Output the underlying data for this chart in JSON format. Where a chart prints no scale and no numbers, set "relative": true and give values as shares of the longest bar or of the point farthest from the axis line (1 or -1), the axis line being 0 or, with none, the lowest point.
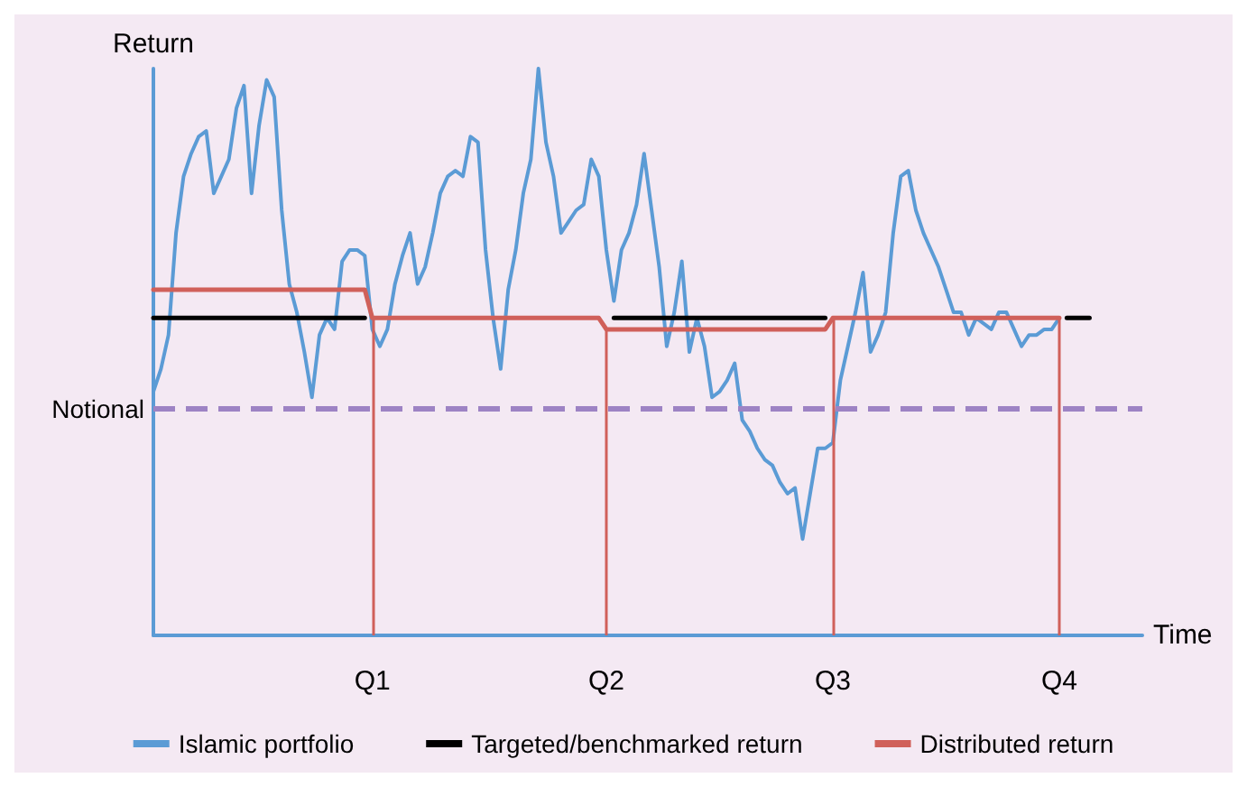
{
  "chart_data": {
    "type": "line",
    "relative": true,
    "xlabel": "Time",
    "ylabel": "Return",
    "categories": [
      null,
      null,
      null,
      null,
      null,
      null,
      null,
      null,
      null,
      null,
      null,
      null,
      null,
      null,
      null,
      null,
      null,
      null,
      null,
      null,
      null,
      null,
      null,
      null,
      null,
      null,
      null,
      null,
      null,
      "Q1",
      null,
      null,
      null,
      null,
      null,
      null,
      null,
      null,
      null,
      null,
      null,
      null,
      null,
      null,
      null,
      null,
      null,
      null,
      null,
      null,
      null,
      null,
      null,
      null,
      null,
      null,
      null,
      null,
      null,
      null,
      "Q2",
      null,
      null,
      null,
      null,
      null,
      null,
      null,
      null,
      null,
      null,
      null,
      null,
      null,
      null,
      null,
      null,
      null,
      null,
      null,
      null,
      null,
      null,
      null,
      null,
      null,
      null,
      null,
      null,
      null,
      "Q3",
      null,
      null,
      null,
      null,
      null,
      null,
      null,
      null,
      null,
      null,
      null,
      null,
      null,
      null,
      null,
      null,
      null,
      null,
      null,
      null,
      null,
      null,
      null,
      null,
      null,
      null,
      null,
      null,
      null,
      "Q4",
      null,
      null,
      null,
      null,
      null,
      null,
      null,
      null,
      null,
      null,
      null
    ],
    "series": [
      {
        "name": "Islamic portfolio",
        "color": "#5b9bd5",
        "values": [
          0.43,
          0.47,
          0.53,
          0.71,
          0.81,
          0.85,
          0.88,
          0.89,
          0.78,
          0.81,
          0.84,
          0.93,
          0.97,
          0.78,
          0.9,
          0.98,
          0.95,
          0.75,
          0.62,
          0.57,
          0.5,
          0.42,
          0.53,
          0.56,
          0.54,
          0.66,
          0.68,
          0.68,
          0.67,
          0.54,
          0.51,
          0.54,
          0.62,
          0.67,
          0.71,
          0.62,
          0.65,
          0.71,
          0.78,
          0.81,
          0.82,
          0.81,
          0.88,
          0.87,
          0.68,
          0.56,
          0.47,
          0.61,
          0.68,
          0.78,
          0.84,
          1,
          0.87,
          0.81,
          0.71,
          0.73,
          0.75,
          0.76,
          0.84,
          0.81,
          0.68,
          0.59,
          0.68,
          0.71,
          0.76,
          0.85,
          0.75,
          0.65,
          0.51,
          0.57,
          0.66,
          0.5,
          0.56,
          0.51,
          0.42,
          0.43,
          0.45,
          0.48,
          0.38,
          0.36,
          0.33,
          0.31,
          0.3,
          0.27,
          0.25,
          0.26,
          0.17,
          0.25,
          0.33,
          0.33,
          0.34,
          0.45,
          0.51,
          0.57,
          0.64,
          0.5,
          0.53,
          0.57,
          0.71,
          0.81,
          0.82,
          0.75,
          0.71,
          0.68,
          0.65,
          0.61,
          0.57,
          0.57,
          0.53,
          0.56,
          0.55,
          0.54,
          0.57,
          0.57,
          0.54,
          0.51,
          0.53,
          0.53,
          0.54,
          0.54,
          0.56,
          null,
          null,
          null,
          null,
          null,
          null,
          null,
          null,
          null,
          null,
          null
        ]
      },
      {
        "name": "Targeted/benchmarked return",
        "color": "#000000",
        "values": [
          0.56,
          0.56,
          0.56,
          0.56,
          0.56,
          0.56,
          0.56,
          0.56,
          0.56,
          0.56,
          0.56,
          0.56,
          0.56,
          0.56,
          0.56,
          0.56,
          0.56,
          0.56,
          0.56,
          0.56,
          0.56,
          0.56,
          0.56,
          0.56,
          0.56,
          0.56,
          0.56,
          0.56,
          0.56,
          null,
          null,
          null,
          null,
          null,
          null,
          null,
          null,
          null,
          null,
          null,
          null,
          null,
          null,
          null,
          null,
          null,
          null,
          null,
          null,
          null,
          null,
          null,
          null,
          null,
          null,
          null,
          null,
          null,
          null,
          null,
          null,
          0.56,
          0.56,
          0.56,
          0.56,
          0.56,
          0.56,
          0.56,
          0.56,
          0.56,
          0.56,
          0.56,
          0.56,
          0.56,
          0.56,
          0.56,
          0.56,
          0.56,
          0.56,
          0.56,
          0.56,
          0.56,
          0.56,
          0.56,
          0.56,
          0.56,
          0.56,
          0.56,
          0.56,
          0.56,
          null,
          null,
          null,
          null,
          null,
          null,
          null,
          null,
          null,
          null,
          null,
          null,
          null,
          null,
          null,
          null,
          null,
          null,
          null,
          null,
          null,
          null,
          null,
          null,
          null,
          null,
          null,
          null,
          null,
          null,
          null,
          0.56,
          0.56,
          0.56,
          0.56,
          null,
          null,
          null,
          null,
          null,
          null,
          null
        ]
      },
      {
        "name": "Distributed return",
        "color": "#d0605a",
        "values": [
          0.61,
          0.61,
          0.61,
          0.61,
          0.61,
          0.61,
          0.61,
          0.61,
          0.61,
          0.61,
          0.61,
          0.61,
          0.61,
          0.61,
          0.61,
          0.61,
          0.61,
          0.61,
          0.61,
          0.61,
          0.61,
          0.61,
          0.61,
          0.61,
          0.61,
          0.61,
          0.61,
          0.61,
          0.61,
          0.56,
          0.56,
          0.56,
          0.56,
          0.56,
          0.56,
          0.56,
          0.56,
          0.56,
          0.56,
          0.56,
          0.56,
          0.56,
          0.56,
          0.56,
          0.56,
          0.56,
          0.56,
          0.56,
          0.56,
          0.56,
          0.56,
          0.56,
          0.56,
          0.56,
          0.56,
          0.56,
          0.56,
          0.56,
          0.56,
          0.56,
          0.54,
          0.54,
          0.54,
          0.54,
          0.54,
          0.54,
          0.54,
          0.54,
          0.54,
          0.54,
          0.54,
          0.54,
          0.54,
          0.54,
          0.54,
          0.54,
          0.54,
          0.54,
          0.54,
          0.54,
          0.54,
          0.54,
          0.54,
          0.54,
          0.54,
          0.54,
          0.54,
          0.54,
          0.54,
          0.54,
          0.56,
          0.56,
          0.56,
          0.56,
          0.56,
          0.56,
          0.56,
          0.56,
          0.56,
          0.56,
          0.56,
          0.56,
          0.56,
          0.56,
          0.56,
          0.56,
          0.56,
          0.56,
          0.56,
          0.56,
          0.56,
          0.56,
          0.56,
          0.56,
          0.56,
          0.56,
          0.56,
          0.56,
          0.56,
          0.56,
          0.56,
          null,
          null,
          null,
          null,
          null,
          null,
          null,
          null,
          null,
          null,
          null
        ]
      }
    ],
    "ref_lines": [
      {
        "axis": "y",
        "value": 0.4,
        "label": "Notional",
        "color": "#9d83c4",
        "line_style": "dashed"
      },
      {
        "axis": "x",
        "value": "Q1",
        "color": "#d0605a"
      },
      {
        "axis": "x",
        "value": "Q2",
        "color": "#d0605a"
      },
      {
        "axis": "x",
        "value": "Q3",
        "color": "#d0605a"
      },
      {
        "axis": "x",
        "value": "Q4",
        "color": "#d0605a"
      }
    ],
    "legend": "bottom",
    "marker": "none",
    "grid": false,
    "line_style": "solid"
  }
}
